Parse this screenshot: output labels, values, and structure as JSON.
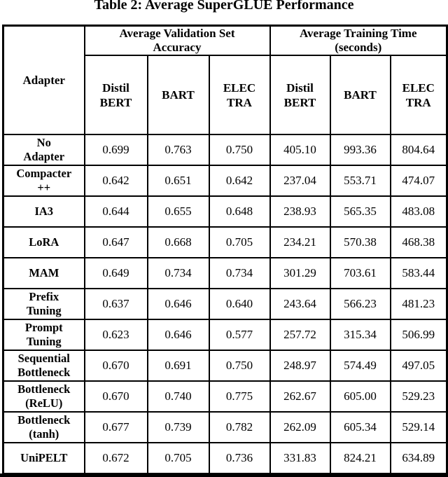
{
  "title": "Table 2: Average SuperGLUE Performance",
  "colors": {
    "background": "#ffffff",
    "text": "#000000",
    "border": "#000000"
  },
  "table": {
    "corner_label": "Adapter",
    "groups": [
      {
        "label": "Average Validation Set\nAccuracy"
      },
      {
        "label": "Average Training Time\n(seconds)"
      }
    ],
    "model_headers": [
      "Distil\nBERT",
      "BART",
      "ELEC\nTRA",
      "Distil\nBERT",
      "BART",
      "ELEC\nTRA"
    ],
    "rows": [
      {
        "label": "No\nAdapter",
        "values": [
          "0.699",
          "0.763",
          "0.750",
          "405.10",
          "993.36",
          "804.64"
        ]
      },
      {
        "label": "Compacter\n++",
        "values": [
          "0.642",
          "0.651",
          "0.642",
          "237.04",
          "553.71",
          "474.07"
        ]
      },
      {
        "label": "IA3",
        "values": [
          "0.644",
          "0.655",
          "0.648",
          "238.93",
          "565.35",
          "483.08"
        ]
      },
      {
        "label": "LoRA",
        "values": [
          "0.647",
          "0.668",
          "0.705",
          "234.21",
          "570.38",
          "468.38"
        ]
      },
      {
        "label": "MAM",
        "values": [
          "0.649",
          "0.734",
          "0.734",
          "301.29",
          "703.61",
          "583.44"
        ]
      },
      {
        "label": "Prefix\nTuning",
        "values": [
          "0.637",
          "0.646",
          "0.640",
          "243.64",
          "566.23",
          "481.23"
        ]
      },
      {
        "label": "Prompt\nTuning",
        "values": [
          "0.623",
          "0.646",
          "0.577",
          "257.72",
          "315.34",
          "506.99"
        ]
      },
      {
        "label": "Sequential\nBottleneck",
        "values": [
          "0.670",
          "0.691",
          "0.750",
          "248.97",
          "574.49",
          "497.05"
        ]
      },
      {
        "label": "Bottleneck\n(ReLU)",
        "values": [
          "0.670",
          "0.740",
          "0.775",
          "262.67",
          "605.00",
          "529.23"
        ]
      },
      {
        "label": "Bottleneck\n(tanh)",
        "values": [
          "0.677",
          "0.739",
          "0.782",
          "262.09",
          "605.34",
          "529.14"
        ]
      },
      {
        "label": "UniPELT",
        "values": [
          "0.672",
          "0.705",
          "0.736",
          "331.83",
          "824.21",
          "634.89"
        ]
      }
    ]
  }
}
